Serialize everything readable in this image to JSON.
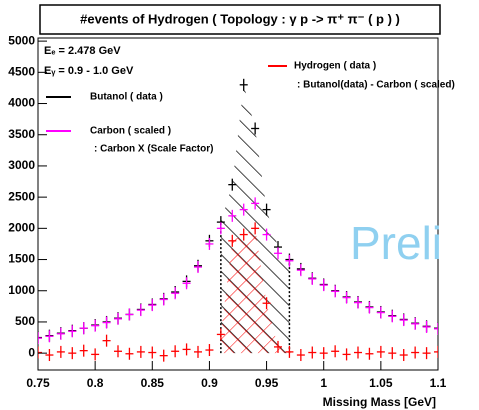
{
  "chart_data": {
    "type": "scatter",
    "title": "#events of Hydrogen ( Topology : γ p -> π⁺ π⁻ ( p ) )",
    "x_label": "Missing Mass [GeV]",
    "annotations": [
      "Eₑ = 2.478 GeV",
      "Eᵧ = 0.9 - 1.0 GeV",
      ": Carbon X (Scale Factor)",
      ": Butanol(data) - Carbon ( scaled)"
    ],
    "watermark": "Preli",
    "x": [
      0.75,
      0.76,
      0.77,
      0.78,
      0.79,
      0.8,
      0.81,
      0.82,
      0.83,
      0.84,
      0.85,
      0.86,
      0.87,
      0.88,
      0.89,
      0.9,
      0.91,
      0.92,
      0.93,
      0.94,
      0.95,
      0.96,
      0.97,
      0.98,
      0.99,
      1.0,
      1.01,
      1.02,
      1.03,
      1.04,
      1.05,
      1.06,
      1.07,
      1.08,
      1.09,
      1.1
    ],
    "series": [
      {
        "name": "Butanol ( data )",
        "color": "#000000",
        "values": [
          250,
          280,
          320,
          360,
          400,
          450,
          500,
          560,
          620,
          700,
          780,
          870,
          980,
          1150,
          1400,
          1800,
          2100,
          2700,
          4300,
          3600,
          2300,
          1700,
          1500,
          1350,
          1200,
          1100,
          1000,
          900,
          820,
          740,
          660,
          600,
          540,
          480,
          430,
          400
        ]
      },
      {
        "name": "Carbon ( scaled )",
        "color": "#ff00ff",
        "values": [
          240,
          270,
          310,
          350,
          400,
          440,
          490,
          550,
          620,
          690,
          770,
          860,
          960,
          1120,
          1380,
          1750,
          2000,
          2200,
          2300,
          2400,
          1900,
          1600,
          1480,
          1330,
          1190,
          1090,
          990,
          890,
          810,
          730,
          650,
          590,
          530,
          470,
          420,
          390
        ]
      },
      {
        "name": "Hydrogen ( data )",
        "color": "#ff0000",
        "values": [
          10,
          -30,
          20,
          0,
          40,
          -20,
          200,
          30,
          -10,
          20,
          10,
          -40,
          30,
          60,
          20,
          50,
          300,
          1800,
          1900,
          2000,
          800,
          100,
          20,
          -30,
          10,
          0,
          30,
          -20,
          10,
          -10,
          20,
          0,
          -30,
          10,
          0,
          20
        ]
      }
    ],
    "selection": [
      0.91,
      0.97
    ],
    "xlim": [
      0.75,
      1.1
    ],
    "ylim": [
      -270,
      5050
    ],
    "xticks": [
      0.75,
      0.8,
      0.85,
      0.9,
      0.95,
      1,
      1.05,
      1.1
    ],
    "yticks": [
      0,
      500,
      1000,
      1500,
      2000,
      2500,
      3000,
      3500,
      4000,
      4500,
      5000
    ]
  }
}
